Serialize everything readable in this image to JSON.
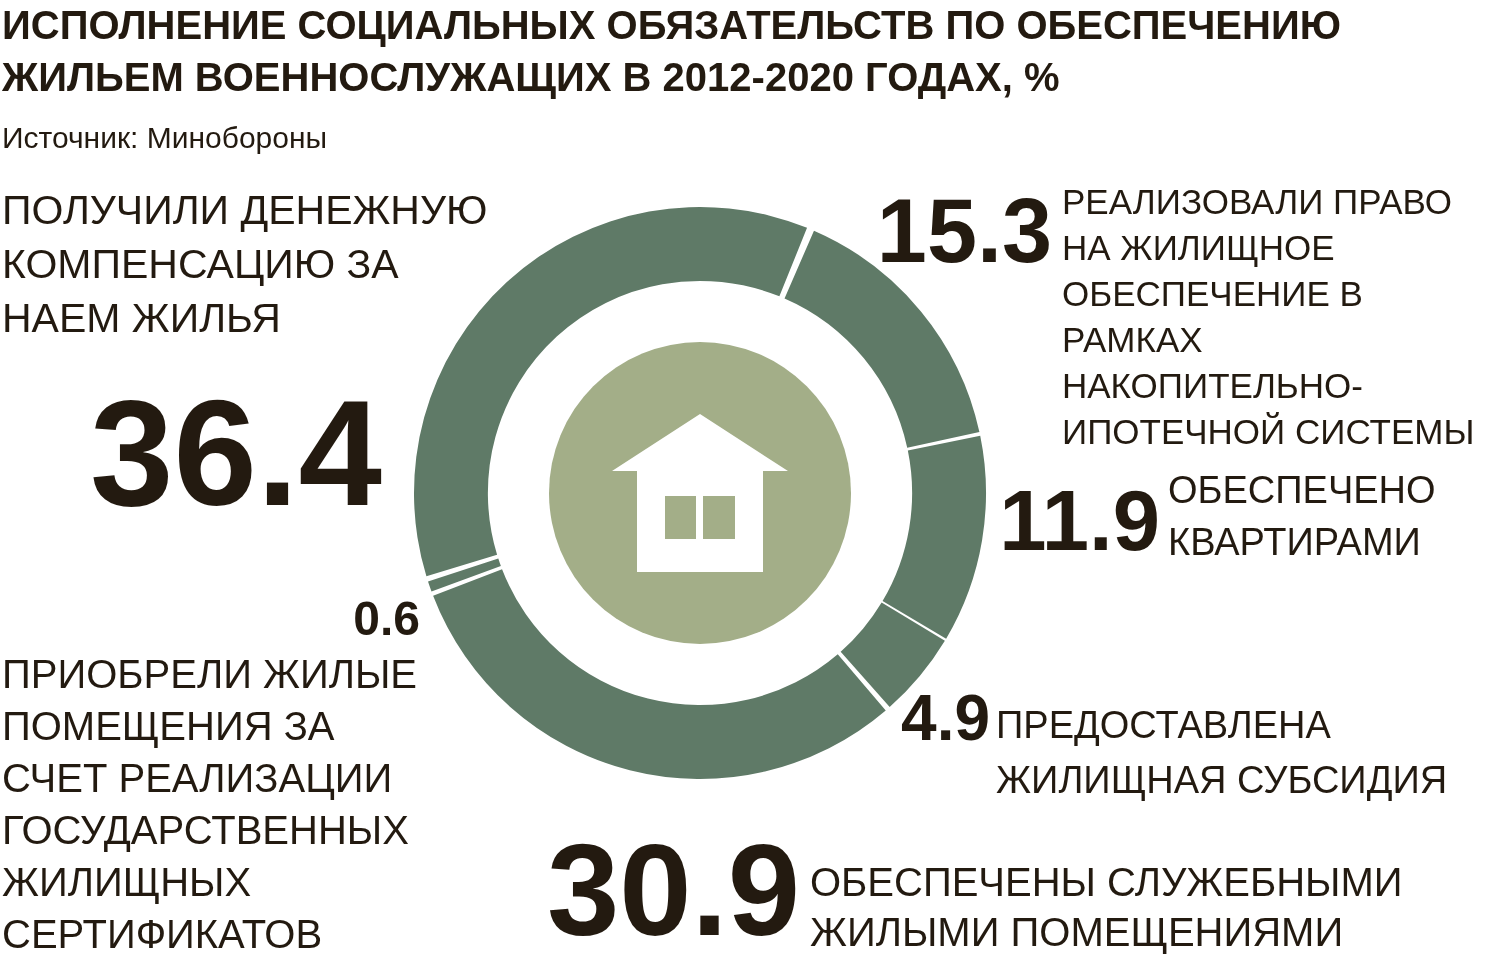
{
  "chart_data": {
    "type": "donut",
    "title": "ИСПОЛНЕНИЕ СОЦИАЛЬНЫХ ОБЯЗАТЕЛЬСТВ ПО ОБЕСПЕЧЕНИЮ ЖИЛЬЕМ ВОЕННОСЛУЖАЩИХ В 2012-2020 ГОДАХ, %",
    "annotations": [
      "Источник: Минобороны"
    ],
    "categories": [
      "ПОЛУЧИЛИ ДЕНЕЖНУЮ КОМПЕНСАЦИЮ ЗА НАЕМ ЖИЛЬЯ",
      "РЕАЛИЗОВАЛИ ПРАВО НА ЖИЛИЩНОЕ ОБЕСПЕЧЕНИЕ В РАМКАХ НАКОПИТЕЛЬНО-ИПОТЕЧНОЙ СИСТЕМЫ",
      "ОБЕСПЕЧЕНО КВАРТИРАМИ",
      "ПРЕДОСТАВЛЕНА ЖИЛИЩНАЯ СУБСИДИЯ",
      "ОБЕСПЕЧЕНЫ СЛУЖЕБНЫМИ ЖИЛЫМИ ПОМЕЩЕНИЯМИ",
      "ПРИОБРЕЛИ ЖИЛЫЕ ПОМЕЩЕНИЯ ЗА СЧЕТ РЕАЛИЗАЦИИ ГОСУДАРСТВЕННЫХ ЖИЛИЩНЫХ СЕРТИФИКАТОВ"
    ],
    "values": [
      36.4,
      15.3,
      11.9,
      4.9,
      30.9,
      0.6
    ],
    "colors": [
      "#5f7a67",
      "#5f7a67",
      "#5f7a67",
      "#5f7a67",
      "#5f7a67",
      "#5f7a67"
    ],
    "data_labels": true
  }
}
